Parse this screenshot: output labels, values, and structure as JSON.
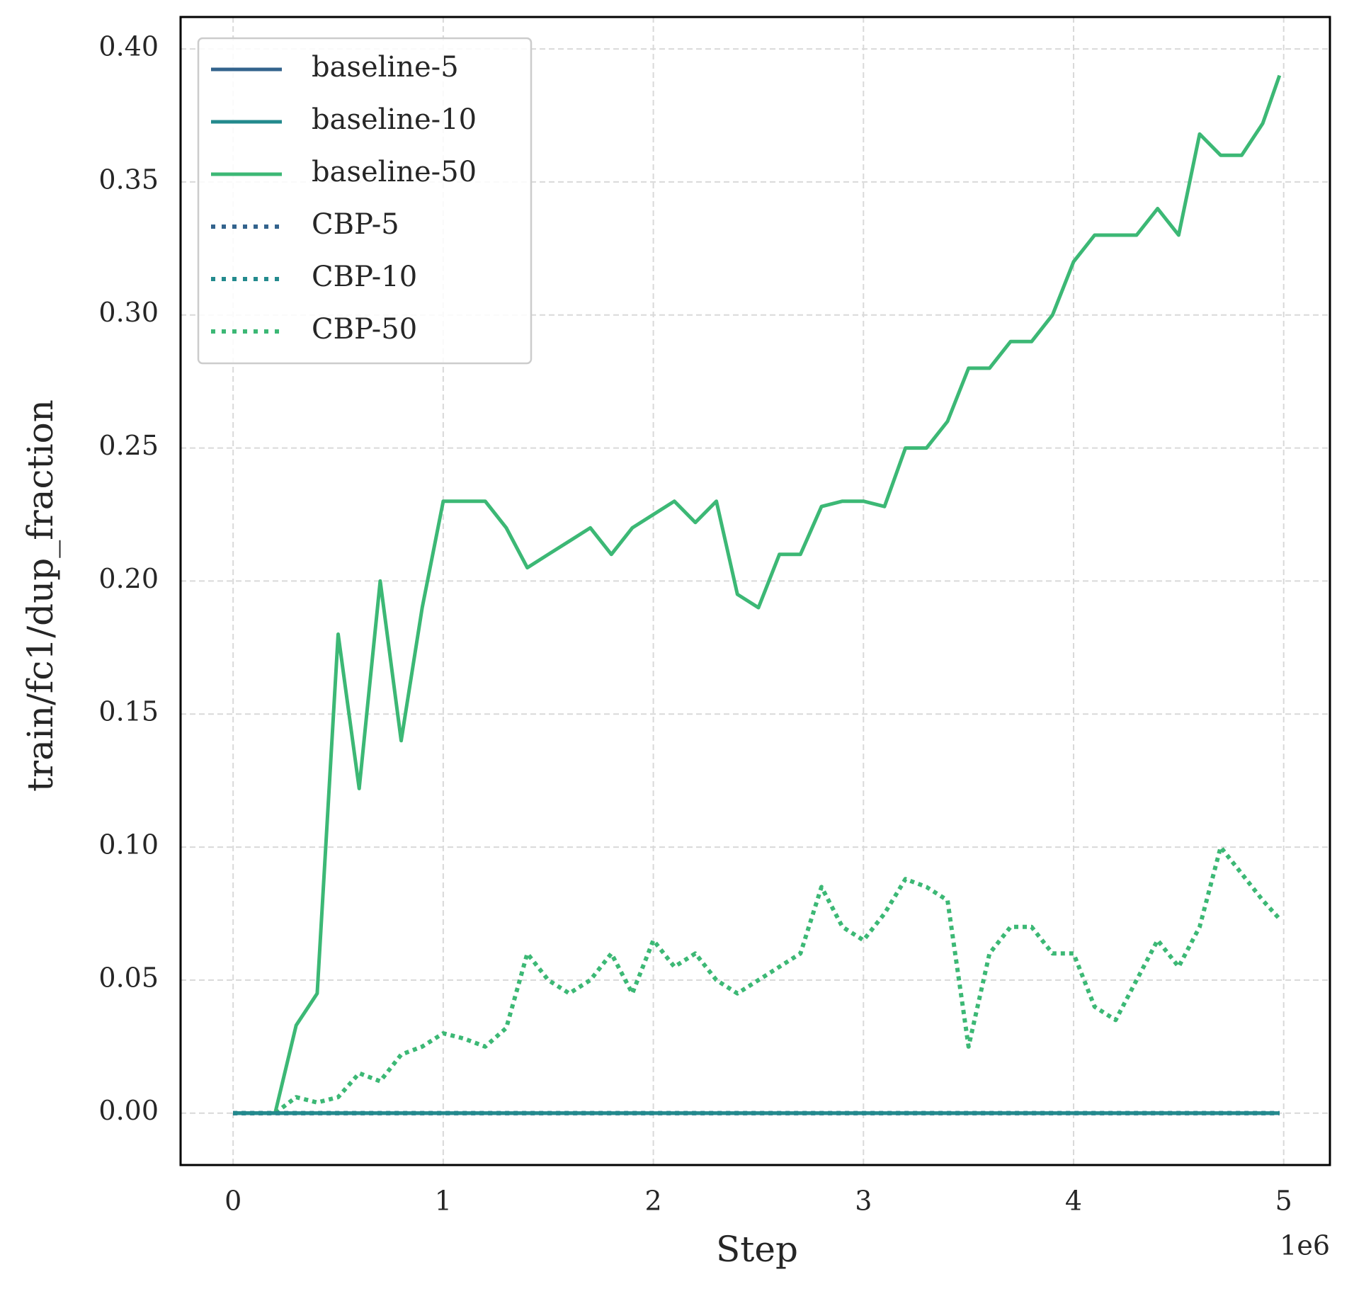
{
  "chart_data": {
    "type": "line",
    "xlabel": "Step",
    "ylabel": "train/fc1/dup_fraction",
    "x_offset_label": "1e6",
    "x": [
      0,
      100000,
      200000,
      300000,
      400000,
      500000,
      600000,
      700000,
      800000,
      900000,
      1000000,
      1100000,
      1200000,
      1300000,
      1400000,
      1500000,
      1600000,
      1700000,
      1800000,
      1900000,
      2000000,
      2100000,
      2200000,
      2300000,
      2400000,
      2500000,
      2600000,
      2700000,
      2800000,
      2900000,
      3000000,
      3100000,
      3200000,
      3300000,
      3400000,
      3500000,
      3600000,
      3700000,
      3800000,
      3900000,
      4000000,
      4100000,
      4200000,
      4300000,
      4400000,
      4500000,
      4600000,
      4700000,
      4800000,
      4900000,
      4980000
    ],
    "series": [
      {
        "name": "baseline-50",
        "color": "#3cb875",
        "dash": false,
        "values": [
          0,
          0,
          0,
          0.033,
          0.045,
          0.18,
          0.122,
          0.2,
          0.14,
          0.19,
          0.23,
          0.23,
          0.23,
          0.22,
          0.205,
          0.21,
          0.215,
          0.22,
          0.21,
          0.22,
          0.225,
          0.23,
          0.222,
          0.23,
          0.195,
          0.19,
          0.21,
          0.21,
          0.228,
          0.23,
          0.23,
          0.228,
          0.25,
          0.25,
          0.26,
          0.28,
          0.28,
          0.29,
          0.29,
          0.3,
          0.32,
          0.33,
          0.33,
          0.33,
          0.34,
          0.33,
          0.368,
          0.36,
          0.36,
          0.372,
          0.39
        ]
      },
      {
        "name": "CBP-50",
        "color": "#3cb875",
        "dash": true,
        "values": [
          0,
          0,
          0,
          0.006,
          0.004,
          0.006,
          0.015,
          0.012,
          0.022,
          0.025,
          0.03,
          0.028,
          0.025,
          0.032,
          0.06,
          0.05,
          0.045,
          0.05,
          0.06,
          0.045,
          0.065,
          0.055,
          0.06,
          0.05,
          0.045,
          0.05,
          0.055,
          0.06,
          0.085,
          0.07,
          0.065,
          0.075,
          0.088,
          0.085,
          0.08,
          0.025,
          0.06,
          0.07,
          0.07,
          0.06,
          0.06,
          0.04,
          0.035,
          0.05,
          0.065,
          0.055,
          0.07,
          0.1,
          0.09,
          0.08,
          0.073
        ]
      },
      {
        "name": "CBP-5",
        "color": "#33638d",
        "dash": true,
        "values": [
          0,
          0,
          0,
          0,
          0,
          0,
          0,
          0,
          0,
          0,
          0,
          0,
          0,
          0,
          0,
          0,
          0,
          0,
          0,
          0,
          0,
          0,
          0,
          0,
          0,
          0,
          0,
          0,
          0,
          0,
          0,
          0,
          0,
          0,
          0,
          0,
          0,
          0,
          0,
          0,
          0,
          0,
          0,
          0,
          0,
          0,
          0,
          0,
          0,
          0,
          0
        ]
      },
      {
        "name": "CBP-10",
        "color": "#238a8d",
        "dash": true,
        "values": [
          0,
          0,
          0,
          0,
          0,
          0,
          0,
          0,
          0,
          0,
          0,
          0,
          0,
          0,
          0,
          0,
          0,
          0,
          0,
          0,
          0,
          0,
          0,
          0,
          0,
          0,
          0,
          0,
          0,
          0,
          0,
          0,
          0,
          0,
          0,
          0,
          0,
          0,
          0,
          0,
          0,
          0,
          0,
          0,
          0,
          0,
          0,
          0,
          0,
          0,
          0
        ]
      },
      {
        "name": "baseline-5",
        "color": "#33638d",
        "dash": false,
        "values": [
          0,
          0,
          0,
          0,
          0,
          0,
          0,
          0,
          0,
          0,
          0,
          0,
          0,
          0,
          0,
          0,
          0,
          0,
          0,
          0,
          0,
          0,
          0,
          0,
          0,
          0,
          0,
          0,
          0,
          0,
          0,
          0,
          0,
          0,
          0,
          0,
          0,
          0,
          0,
          0,
          0,
          0,
          0,
          0,
          0,
          0,
          0,
          0,
          0,
          0,
          0
        ]
      },
      {
        "name": "baseline-10",
        "color": "#238a8d",
        "dash": false,
        "values": [
          0,
          0,
          0,
          0,
          0,
          0,
          0,
          0,
          0,
          0,
          0,
          0,
          0,
          0,
          0,
          0,
          0,
          0,
          0,
          0,
          0,
          0,
          0,
          0,
          0,
          0,
          0,
          0,
          0,
          0,
          0,
          0,
          0,
          0,
          0,
          0,
          0,
          0,
          0,
          0,
          0,
          0,
          0,
          0,
          0,
          0,
          0,
          0,
          0,
          0,
          0
        ]
      }
    ],
    "legend_order": [
      "baseline-5",
      "baseline-10",
      "baseline-50",
      "CBP-5",
      "CBP-10",
      "CBP-50"
    ],
    "xlim": [
      -250000,
      5220000
    ],
    "xticks": [
      {
        "value": 0,
        "label": "0"
      },
      {
        "value": 1000000,
        "label": "1"
      },
      {
        "value": 2000000,
        "label": "2"
      },
      {
        "value": 3000000,
        "label": "3"
      },
      {
        "value": 4000000,
        "label": "4"
      },
      {
        "value": 5000000,
        "label": "5"
      }
    ],
    "ylim": [
      -0.0195,
      0.412
    ],
    "yticks": [
      {
        "value": 0,
        "label": "0.00"
      },
      {
        "value": 0.05,
        "label": "0.05"
      },
      {
        "value": 0.1,
        "label": "0.10"
      },
      {
        "value": 0.15,
        "label": "0.15"
      },
      {
        "value": 0.2,
        "label": "0.20"
      },
      {
        "value": 0.25,
        "label": "0.25"
      },
      {
        "value": 0.3,
        "label": "0.30"
      },
      {
        "value": 0.35,
        "label": "0.35"
      },
      {
        "value": 0.4,
        "label": "0.40"
      }
    ],
    "grid": true,
    "legend_position": "upper-left"
  }
}
